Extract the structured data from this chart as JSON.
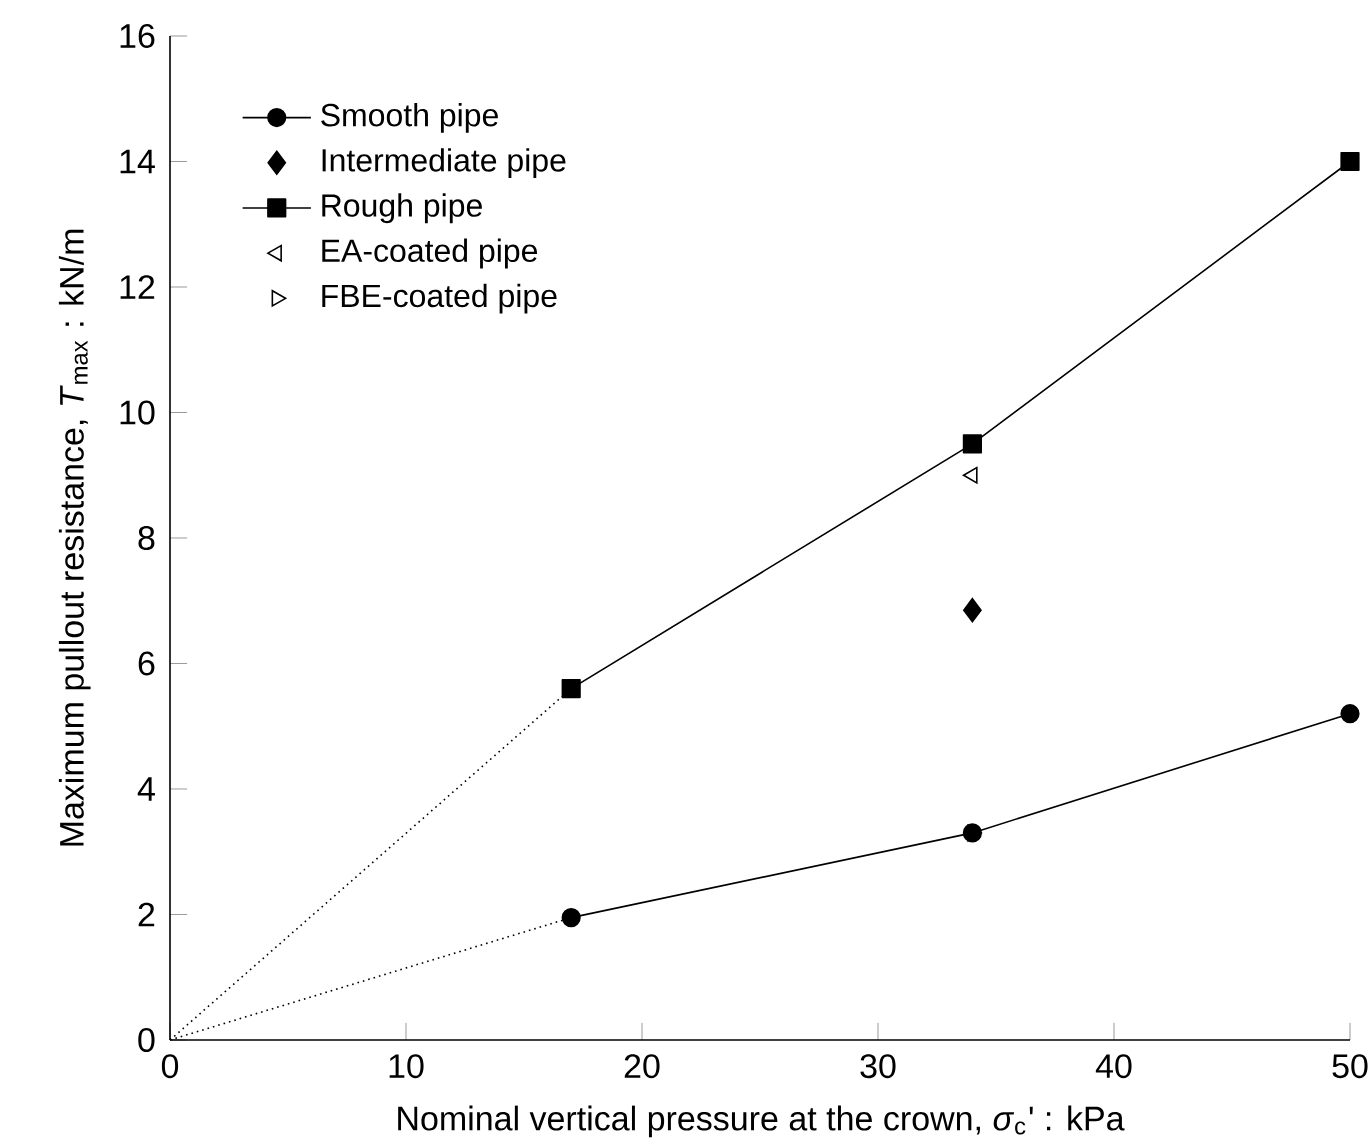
{
  "chart_data": {
    "type": "line",
    "xlabel": "Nominal vertical pressure at the crown, *σ*$_{c}$' : kPa",
    "ylabel": "Maximum pullout resistance, *T*$_{max}$ : kN/m",
    "xlim": [
      0,
      50
    ],
    "ylim": [
      0,
      16
    ],
    "xticks": [
      0,
      10,
      20,
      30,
      40,
      50
    ],
    "yticks": [
      0,
      2,
      4,
      6,
      8,
      10,
      12,
      14,
      16
    ],
    "grid": false,
    "legend": "top left",
    "series": [
      {
        "name": "Smooth pipe",
        "marker": "circle",
        "line_style": "solid",
        "color": "#000000",
        "x": [
          17,
          34,
          50
        ],
        "values": [
          1.95,
          3.3,
          5.2
        ]
      },
      {
        "name": "Intermediate pipe",
        "type": "scatter",
        "marker": "diamond",
        "color": "#000000",
        "x": [
          34
        ],
        "values": [
          6.85
        ]
      },
      {
        "name": "Rough pipe",
        "marker": "square",
        "line_style": "solid",
        "color": "#000000",
        "x": [
          17,
          34,
          50
        ],
        "values": [
          5.6,
          9.5,
          14.0
        ]
      },
      {
        "name": "EA-coated pipe",
        "type": "scatter",
        "marker": "triangle-left",
        "color": "#000000",
        "x": [
          34
        ],
        "values": [
          9.0
        ]
      },
      {
        "name": "FBE-coated pipe",
        "type": "scatter",
        "marker": "triangle-right",
        "color": "#000000",
        "x": [
          34
        ],
        "values": [
          3.3
        ]
      },
      {
        "type": "line",
        "marker": "none",
        "line_style": "dotted",
        "color": "#000000",
        "x": [
          0,
          17
        ],
        "values": [
          0,
          1.95
        ]
      },
      {
        "type": "line",
        "marker": "none",
        "line_style": "dotted",
        "color": "#000000",
        "x": [
          0,
          17
        ],
        "values": [
          0,
          5.6
        ]
      }
    ]
  }
}
